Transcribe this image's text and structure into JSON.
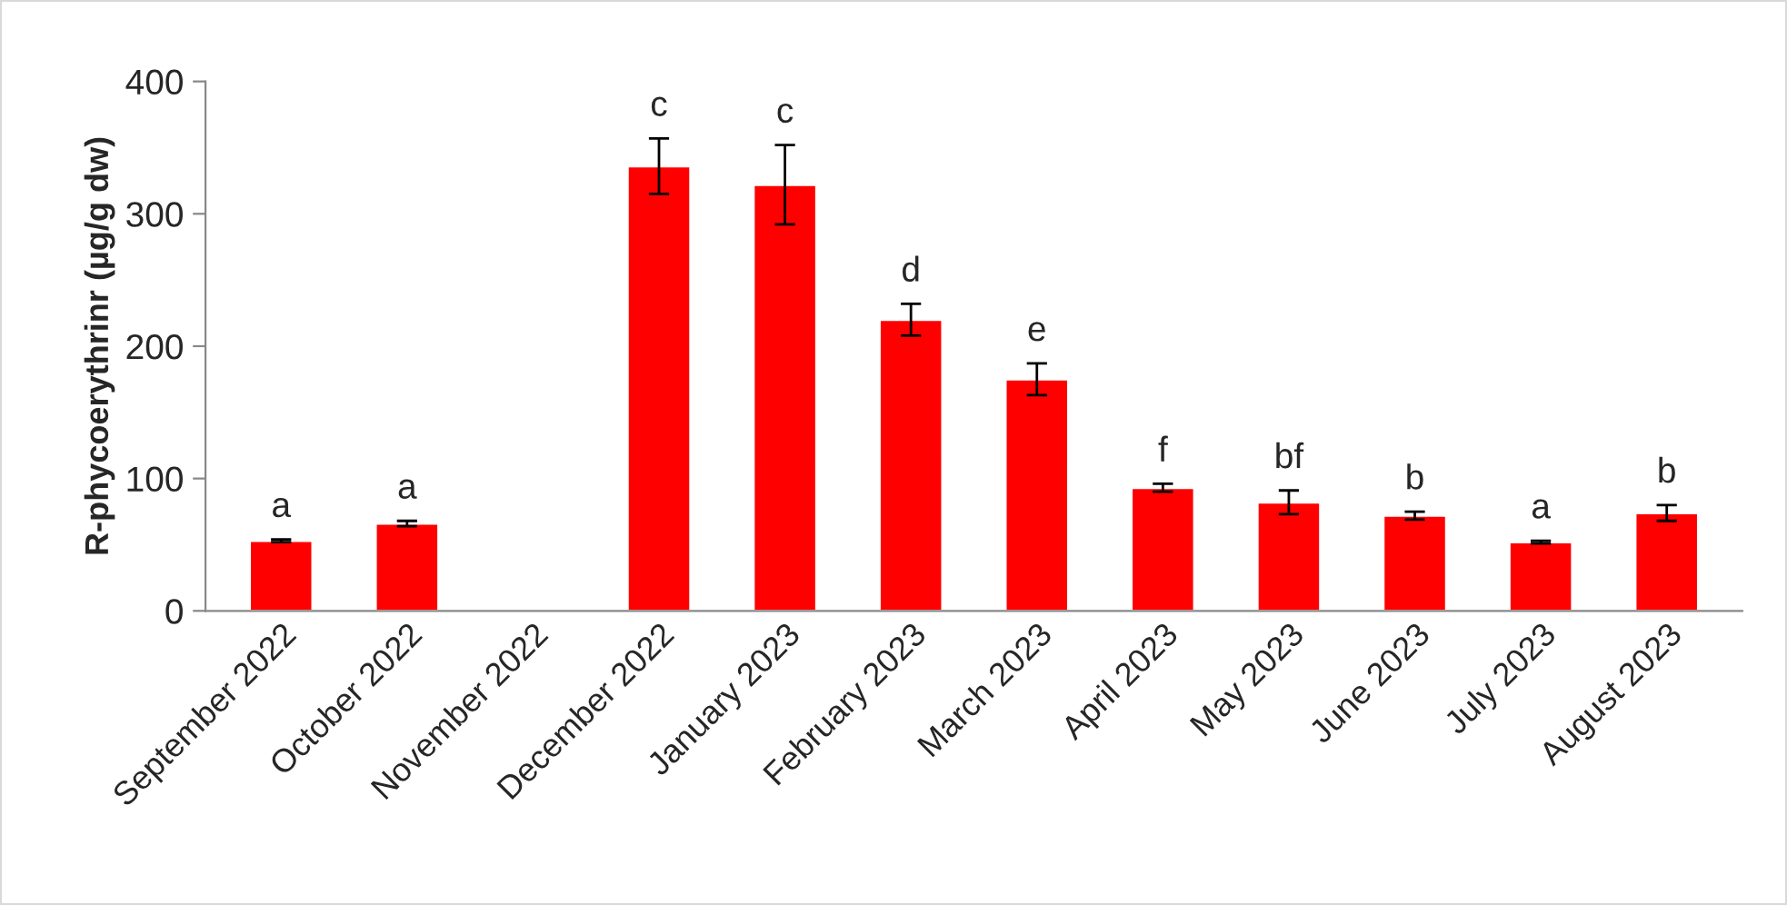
{
  "chart_data": {
    "type": "bar",
    "ylabel": "R-phycoerythrinr (µg/g dw)",
    "categories": [
      "September 2022",
      "October 2022",
      "November 2022",
      "December 2022",
      "January 2023",
      "February 2023",
      "March 2023",
      "April 2023",
      "May 2023",
      "June 2023",
      "July 2023",
      "August 2023"
    ],
    "values": [
      53,
      66,
      null,
      336,
      322,
      220,
      175,
      93,
      82,
      72,
      52,
      74
    ],
    "errors": [
      1,
      2,
      null,
      21,
      30,
      12,
      12,
      3,
      9,
      3,
      1,
      6
    ],
    "value_labels": [
      "a",
      "a",
      null,
      "c",
      "c",
      "d",
      "e",
      "f",
      "bf",
      "b",
      "a",
      "b"
    ],
    "color": "#ff0000",
    "ylim": [
      0,
      400
    ],
    "yticks": [
      0,
      100,
      200,
      300,
      400
    ],
    "grid": false,
    "legend": false
  }
}
